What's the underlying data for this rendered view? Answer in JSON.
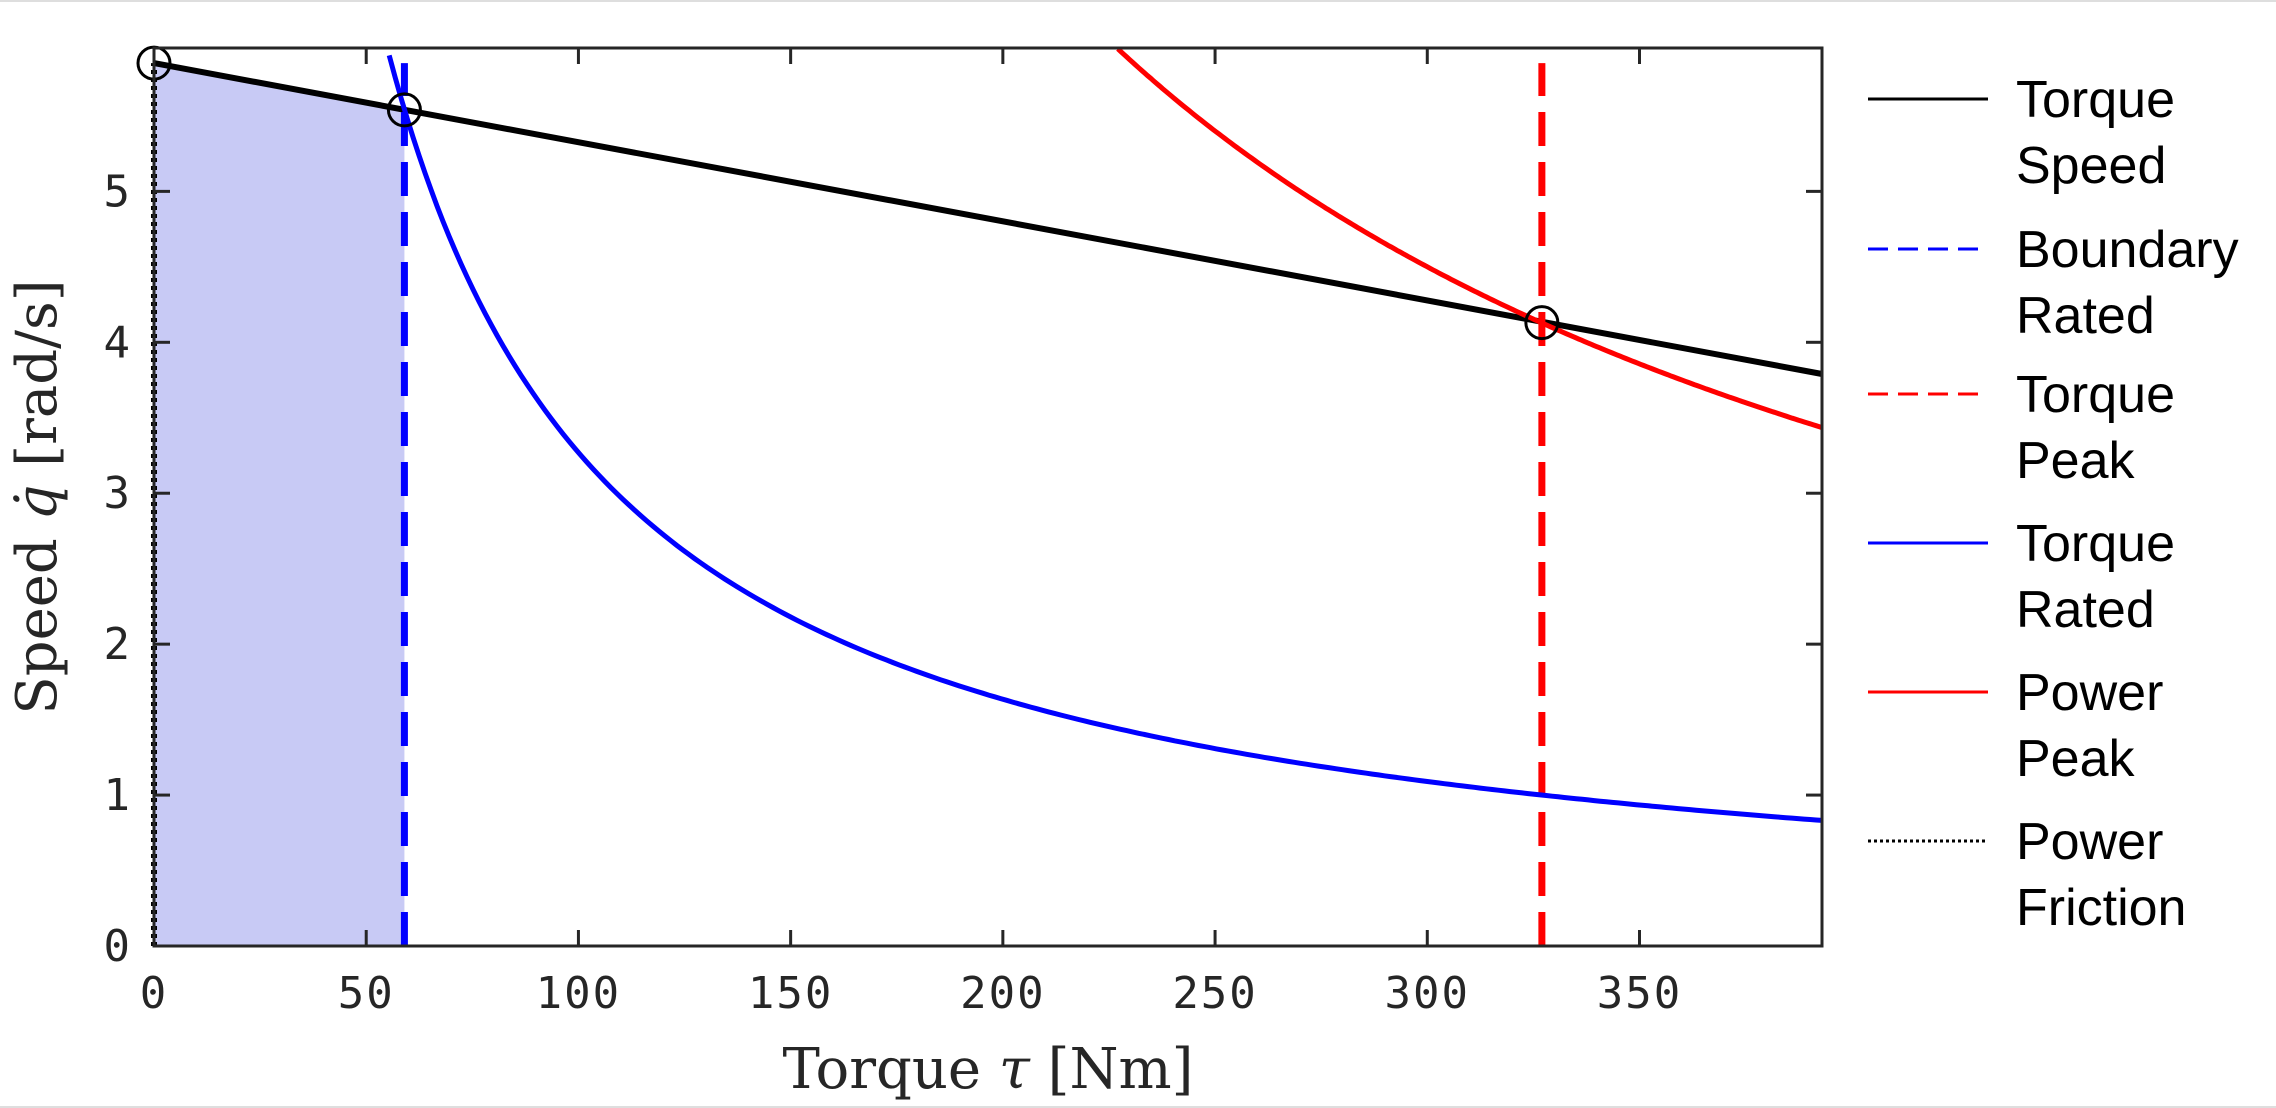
{
  "chart_data": {
    "type": "line",
    "title": "",
    "xlabel": "Torque",
    "xlabel_symbol": "τ",
    "xlabel_unit": "[Nm]",
    "ylabel": "Speed",
    "ylabel_symbol": "q̇",
    "ylabel_unit": "[rad/s]",
    "xlim": [
      0,
      393
    ],
    "ylim": [
      0,
      5.95
    ],
    "xticks": [
      0,
      50,
      100,
      150,
      200,
      250,
      300,
      350
    ],
    "yticks": [
      0,
      1,
      2,
      3,
      4,
      5
    ],
    "grid": false,
    "legend_position": "outside-right",
    "legend": [
      {
        "key": "torque_speed",
        "lines": [
          "Torque",
          "Speed"
        ],
        "color": "#000000",
        "style": "solid"
      },
      {
        "key": "rated_boundary",
        "lines": [
          "Boundary",
          "Rated"
        ],
        "color": "#0000ff",
        "style": "dashed"
      },
      {
        "key": "peak_torque",
        "lines": [
          "Torque",
          "Peak"
        ],
        "color": "#ff0000",
        "style": "dashed"
      },
      {
        "key": "rated_power",
        "lines": [
          "Torque",
          "Rated"
        ],
        "color": "#0000ff",
        "style": "solid"
      },
      {
        "key": "peak_power",
        "lines": [
          "Power",
          "Peak"
        ],
        "color": "#ff0000",
        "style": "solid"
      },
      {
        "key": "friction",
        "lines": [
          "Power",
          "Friction"
        ],
        "color": "#000000",
        "style": "dotted"
      }
    ],
    "series": [
      {
        "key": "torque_speed",
        "kind": "line",
        "color": "#000000",
        "style": "solid",
        "x": [
          0,
          393
        ],
        "y": [
          5.85,
          3.79
        ]
      },
      {
        "key": "rated_boundary",
        "kind": "vline",
        "color": "#0000ff",
        "style": "dashed",
        "x": 59,
        "y": [
          0,
          5.85
        ]
      },
      {
        "key": "peak_torque",
        "kind": "vline",
        "color": "#ff0000",
        "style": "dashed",
        "x": 327,
        "y": [
          0,
          5.85
        ]
      },
      {
        "key": "rated_power",
        "kind": "hyperbola",
        "color": "#0000ff",
        "style": "solid",
        "power": 327,
        "x_range": [
          54,
          393
        ]
      },
      {
        "key": "peak_power",
        "kind": "hyperbola",
        "color": "#ff0000",
        "style": "solid",
        "power": 1350,
        "x_range": [
          225,
          393
        ]
      },
      {
        "key": "friction",
        "kind": "vline",
        "color": "#000000",
        "style": "dotted",
        "x": 0,
        "y": [
          0,
          5.85
        ]
      }
    ],
    "shaded_region": {
      "color": "#c8caf5",
      "x": [
        0,
        59
      ],
      "y_top": [
        5.85,
        5.54
      ]
    },
    "markers": [
      {
        "x": 0,
        "y": 5.85
      },
      {
        "x": 59,
        "y": 5.54
      },
      {
        "x": 327,
        "y": 4.13
      }
    ]
  }
}
